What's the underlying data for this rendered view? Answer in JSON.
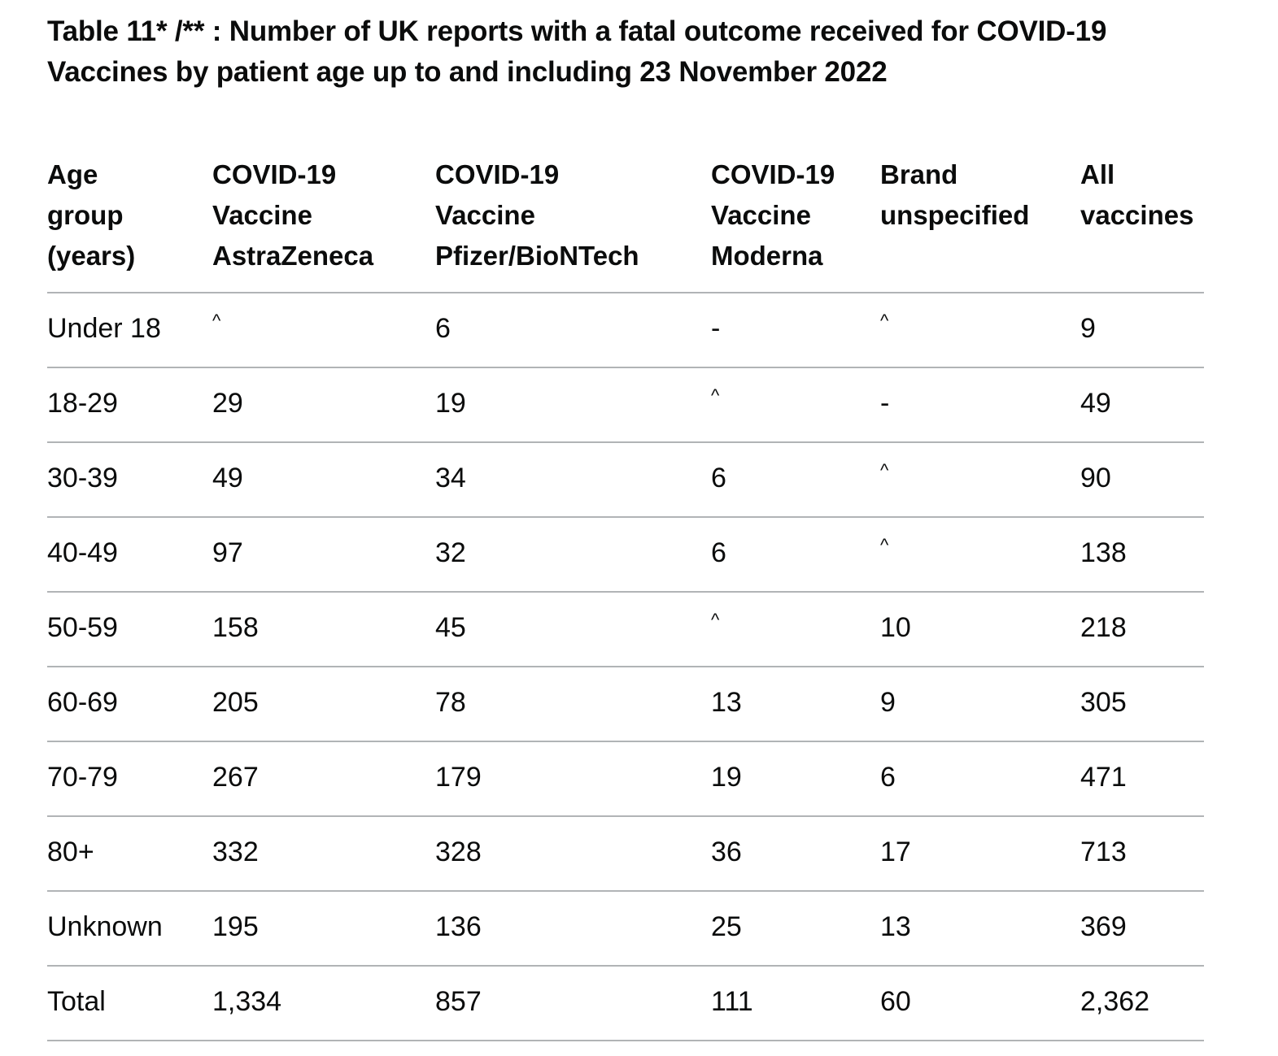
{
  "caption": "Table 11* /** : Number of UK reports with a fatal outcome received for COVID-19 Vaccines by patient age up to and including 23 November 2022",
  "columns": [
    {
      "lines": [
        "Age",
        "group",
        "(years)"
      ]
    },
    {
      "lines": [
        "COVID-19",
        "Vaccine",
        "AstraZeneca"
      ]
    },
    {
      "lines": [
        "COVID-19",
        "Vaccine",
        "Pfizer/BioNTech"
      ]
    },
    {
      "lines": [
        "COVID-19",
        "Vaccine",
        "Moderna"
      ]
    },
    {
      "lines": [
        "Brand",
        "unspecified"
      ]
    },
    {
      "lines": [
        "All",
        "vaccines"
      ]
    }
  ],
  "rows": [
    [
      "Under 18",
      "^",
      "6",
      "-",
      "^",
      "9"
    ],
    [
      "18-29",
      "29",
      "19",
      "^",
      "-",
      "49"
    ],
    [
      "30-39",
      "49",
      "34",
      "6",
      "^",
      "90"
    ],
    [
      "40-49",
      "97",
      "32",
      "6",
      "^",
      "138"
    ],
    [
      "50-59",
      "158",
      "45",
      "^",
      "10",
      "218"
    ],
    [
      "60-69",
      "205",
      "78",
      "13",
      "9",
      "305"
    ],
    [
      "70-79",
      "267",
      "179",
      "19",
      "6",
      "471"
    ],
    [
      "80+",
      "332",
      "328",
      "36",
      "17",
      "713"
    ],
    [
      "Unknown",
      "195",
      "136",
      "25",
      "13",
      "369"
    ],
    [
      "Total",
      "1,334",
      "857",
      "111",
      "60",
      "2,362"
    ]
  ]
}
